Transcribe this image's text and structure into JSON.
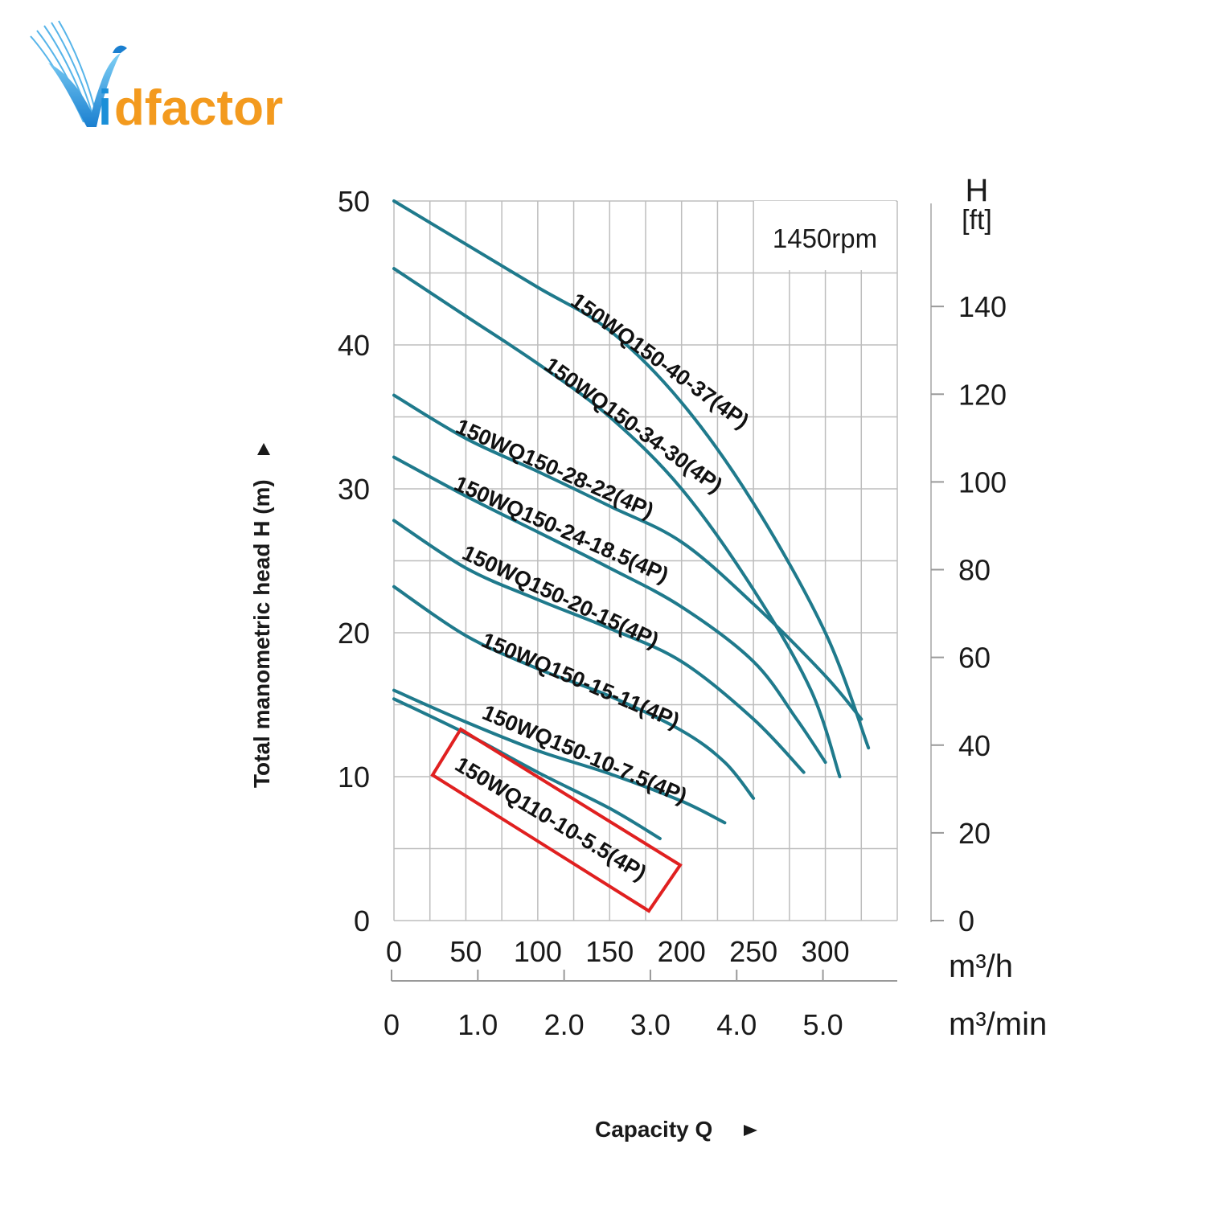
{
  "brand": {
    "logo_text": "Vidfactor",
    "logo_v": "V",
    "logo_i": "i",
    "logo_rest": "dfactor",
    "colors": {
      "blue": "#1a8fd8",
      "orange": "#f39a1e"
    }
  },
  "chart_data": {
    "type": "line",
    "title": "",
    "annotation": "1450rpm",
    "xlabel": "Capacity Q",
    "ylabel": "Total manometric head H (m)",
    "x_unit_primary": "m³/h",
    "x_unit_secondary": "m³/min",
    "y_unit_secondary_title": "H",
    "y_unit_secondary": "[ft]",
    "xlim": [
      0,
      350
    ],
    "ylim": [
      0,
      50
    ],
    "x_ticks_primary": [
      "0",
      "50",
      "100",
      "150",
      "200",
      "250",
      "300"
    ],
    "x_tick_values_primary": [
      0,
      50,
      100,
      150,
      200,
      250,
      300
    ],
    "x_ticks_secondary": [
      "0",
      "1.0",
      "2.0",
      "3.0",
      "4.0",
      "5.0"
    ],
    "x_tick_values_secondary": [
      0,
      1.0,
      2.0,
      3.0,
      4.0,
      5.0
    ],
    "y_ticks": [
      "0",
      "10",
      "20",
      "30",
      "40",
      "50"
    ],
    "y_tick_values": [
      0,
      10,
      20,
      30,
      40,
      50
    ],
    "y_ticks_secondary": [
      "0",
      "20",
      "40",
      "60",
      "80",
      "100",
      "120",
      "140"
    ],
    "y_tick_values_secondary": [
      0,
      20,
      40,
      60,
      80,
      100,
      120,
      140
    ],
    "curve_color": "#1f7a8c",
    "highlight_color": "#e02020",
    "highlighted_series": "150WQ110-10-5.5(4P)",
    "series": [
      {
        "name": "150WQ150-40-37(4P)",
        "points": [
          [
            0,
            50
          ],
          [
            50,
            47
          ],
          [
            100,
            44
          ],
          [
            150,
            41
          ],
          [
            200,
            36
          ],
          [
            250,
            29
          ],
          [
            300,
            20
          ],
          [
            330,
            12
          ]
        ]
      },
      {
        "name": "150WQ150-34-30(4P)",
        "points": [
          [
            0,
            45.3
          ],
          [
            50,
            42
          ],
          [
            100,
            38.7
          ],
          [
            150,
            35
          ],
          [
            200,
            30
          ],
          [
            250,
            23
          ],
          [
            290,
            16
          ],
          [
            310,
            10
          ]
        ]
      },
      {
        "name": "150WQ150-28-22(4P)",
        "points": [
          [
            0,
            36.5
          ],
          [
            50,
            33.5
          ],
          [
            100,
            31.2
          ],
          [
            150,
            28.8
          ],
          [
            200,
            26.3
          ],
          [
            250,
            22
          ],
          [
            300,
            17
          ],
          [
            325,
            14
          ]
        ]
      },
      {
        "name": "150WQ150-24-18.5(4P)",
        "points": [
          [
            0,
            32.2
          ],
          [
            50,
            29.5
          ],
          [
            100,
            27
          ],
          [
            150,
            24.5
          ],
          [
            200,
            21.8
          ],
          [
            250,
            18
          ],
          [
            280,
            14
          ],
          [
            300,
            11
          ]
        ]
      },
      {
        "name": "150WQ150-20-15(4P)",
        "points": [
          [
            0,
            27.8
          ],
          [
            50,
            24.5
          ],
          [
            100,
            22.3
          ],
          [
            150,
            20.3
          ],
          [
            200,
            18
          ],
          [
            250,
            14
          ],
          [
            285,
            10.3
          ]
        ]
      },
      {
        "name": "150WQ150-15-11(4P)",
        "points": [
          [
            0,
            23.2
          ],
          [
            50,
            19.8
          ],
          [
            100,
            17.5
          ],
          [
            150,
            15.6
          ],
          [
            200,
            13.2
          ],
          [
            230,
            11
          ],
          [
            250,
            8.5
          ]
        ]
      },
      {
        "name": "150WQ150-10-7.5(4P)",
        "points": [
          [
            0,
            16
          ],
          [
            50,
            13.8
          ],
          [
            100,
            11.8
          ],
          [
            150,
            10.2
          ],
          [
            200,
            8.3
          ],
          [
            230,
            6.8
          ]
        ]
      },
      {
        "name": "150WQ110-10-5.5(4P)",
        "points": [
          [
            0,
            15.4
          ],
          [
            50,
            13
          ],
          [
            100,
            10.3
          ],
          [
            150,
            7.8
          ],
          [
            185,
            5.7
          ]
        ]
      }
    ]
  }
}
